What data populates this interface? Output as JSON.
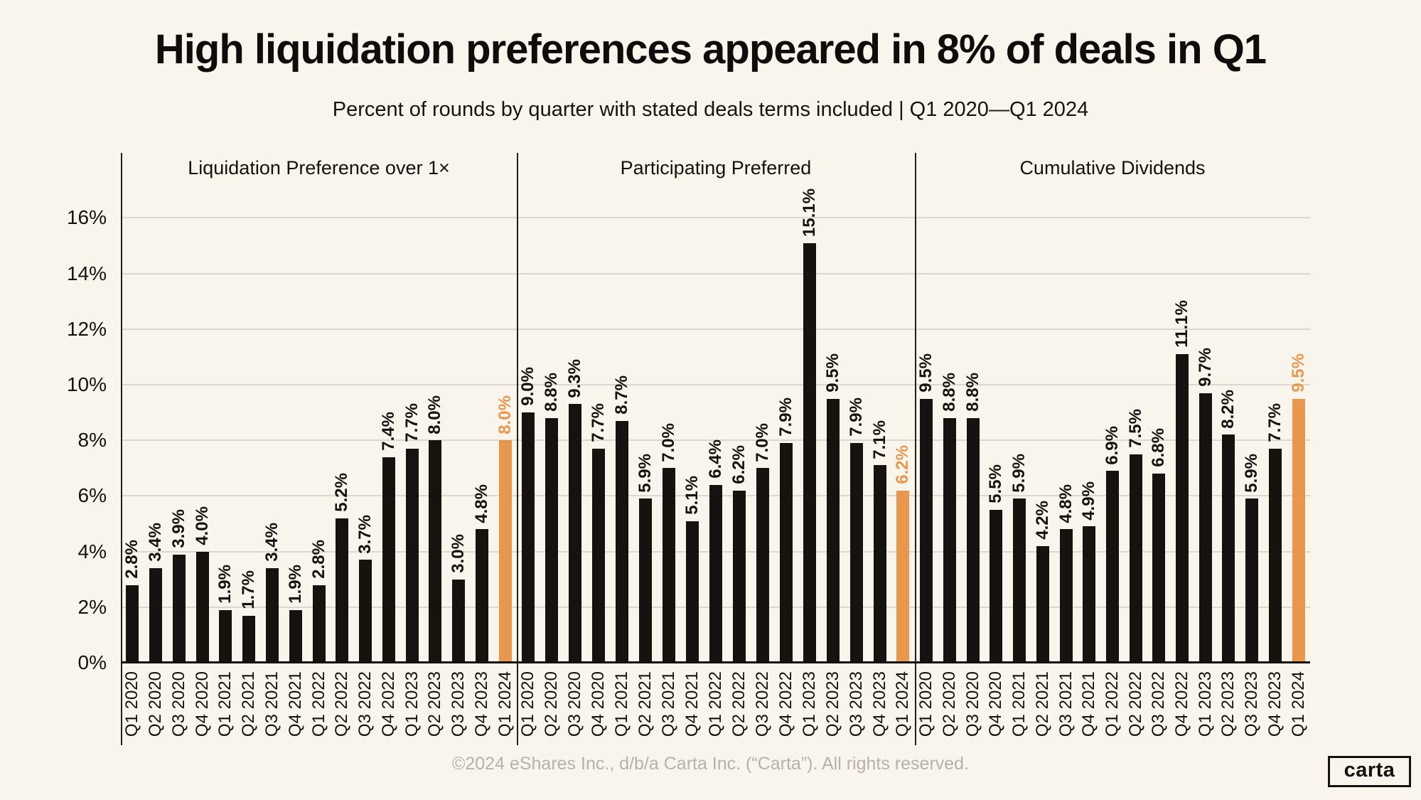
{
  "header": {
    "title": "High liquidation preferences appeared in 8% of deals in Q1",
    "subtitle": "Percent of rounds by quarter with stated deals terms included | Q1 2020—Q1 2024"
  },
  "chart_data": {
    "type": "bar",
    "unit": "%",
    "grid": true,
    "y_ticks": [
      0,
      2,
      4,
      6,
      8,
      10,
      12,
      14,
      16
    ],
    "y_max": 18.3,
    "categories": [
      "Q1 2020",
      "Q2 2020",
      "Q3 2020",
      "Q4 2020",
      "Q1 2021",
      "Q2 2021",
      "Q3 2021",
      "Q4 2021",
      "Q1 2022",
      "Q2 2022",
      "Q3 2022",
      "Q4 2022",
      "Q1 2023",
      "Q2 2023",
      "Q3 2023",
      "Q4 2023",
      "Q1 2024"
    ],
    "highlight_category": "Q1 2024",
    "colors": {
      "bar": "#15120f",
      "highlight": "#e9974f"
    },
    "panels": [
      {
        "title": "Liquidation Preference over 1×",
        "values": [
          2.8,
          3.4,
          3.9,
          4.0,
          1.9,
          1.7,
          3.4,
          1.9,
          2.8,
          5.2,
          3.7,
          7.4,
          7.7,
          8.0,
          3.0,
          4.8,
          8.0
        ]
      },
      {
        "title": "Participating Preferred",
        "values": [
          9.0,
          8.8,
          9.3,
          7.7,
          8.7,
          5.9,
          7.0,
          5.1,
          6.4,
          6.2,
          7.0,
          7.9,
          15.1,
          9.5,
          7.9,
          7.1,
          6.2
        ]
      },
      {
        "title": "Cumulative Dividends",
        "values": [
          9.5,
          8.8,
          8.8,
          5.5,
          5.9,
          4.2,
          4.8,
          4.9,
          6.9,
          7.5,
          6.8,
          11.1,
          9.7,
          8.2,
          5.9,
          7.7,
          9.5
        ]
      }
    ]
  },
  "footer": {
    "copyright": "©2024 eShares Inc., d/b/a Carta Inc. (“Carta”). All rights reserved.",
    "logo_text": "carta"
  }
}
